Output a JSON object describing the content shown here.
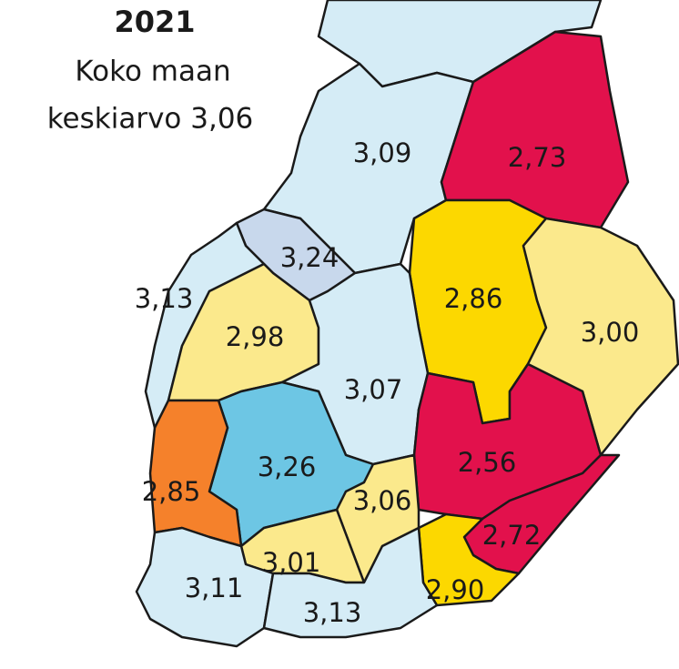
{
  "title": "2021",
  "subtitle_lines": [
    "Koko maan",
    "keskiarvo 3,06"
  ],
  "regions": [
    {
      "label": "3,09",
      "color": "#d5ecf6"
    },
    {
      "label": "2,73",
      "color": "#e2114c"
    },
    {
      "label": "3,24",
      "color": "#c8d8ec"
    },
    {
      "label": "3,13",
      "color": "#d5ecf6"
    },
    {
      "label": "2,98",
      "color": "#fbe98c"
    },
    {
      "label": "2,86",
      "color": "#fcd800"
    },
    {
      "label": "3,00",
      "color": "#fbe98c"
    },
    {
      "label": "3,07",
      "color": "#d5ecf6"
    },
    {
      "label": "3,26",
      "color": "#6dc6e4"
    },
    {
      "label": "2,85",
      "color": "#f5812b"
    },
    {
      "label": "2,56",
      "color": "#e2114c"
    },
    {
      "label": "3,06",
      "color": "#fbe98c"
    },
    {
      "label": "2,72",
      "color": "#e2114c"
    },
    {
      "label": "3,01",
      "color": "#fbe98c"
    },
    {
      "label": "2,90",
      "color": "#fcd800"
    },
    {
      "label": "3,11",
      "color": "#d5ecf6"
    },
    {
      "label": "3,13",
      "color": "#d5ecf6"
    }
  ]
}
